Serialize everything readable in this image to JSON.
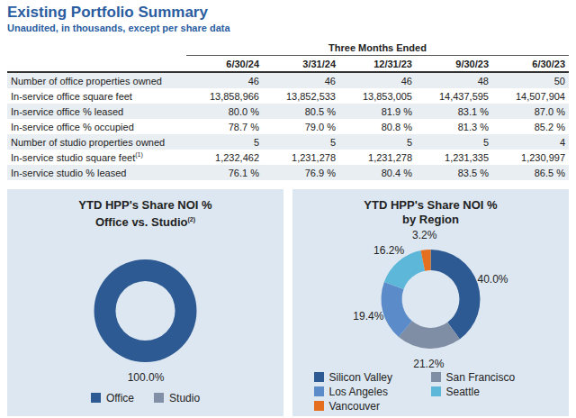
{
  "header": {
    "title": "Existing Portfolio Summary",
    "subtitle": "Unaudited, in thousands, except per share data"
  },
  "table": {
    "group_header": "Three Months Ended",
    "columns": [
      "6/30/24",
      "3/31/24",
      "12/31/23",
      "9/30/23",
      "6/30/23"
    ],
    "rows": [
      {
        "label": "Number of office properties owned",
        "values": [
          "46",
          "46",
          "46",
          "48",
          "50"
        ]
      },
      {
        "label": "In-service office square feet",
        "values": [
          "13,858,966",
          "13,852,533",
          "13,853,005",
          "14,437,595",
          "14,507,904"
        ]
      },
      {
        "label": "In-service office % leased",
        "values": [
          "80.0 %",
          "80.5 %",
          "81.9 %",
          "83.1 %",
          "87.0 %"
        ]
      },
      {
        "label": "In-service office % occupied",
        "values": [
          "78.7 %",
          "79.0 %",
          "80.8 %",
          "81.3 %",
          "85.2 %"
        ]
      },
      {
        "label": "Number of studio properties owned",
        "values": [
          "5",
          "5",
          "5",
          "5",
          "4"
        ]
      },
      {
        "label": "In-service studio square feet",
        "footnote": "(1)",
        "values": [
          "1,232,462",
          "1,231,278",
          "1,231,278",
          "1,231,335",
          "1,230,997"
        ]
      },
      {
        "label": "In-service studio % leased",
        "values": [
          "76.1 %",
          "76.9 %",
          "80.4 %",
          "83.5 %",
          "86.5 %"
        ]
      }
    ]
  },
  "chart_data": [
    {
      "type": "donut",
      "title": "YTD HPP's Share NOI %",
      "subtitle": "Office vs. Studio",
      "title_footnote": "(2)",
      "categories": [
        "Office",
        "Studio"
      ],
      "values": [
        100,
        0
      ],
      "value_labels": [
        "100.0%",
        null
      ],
      "colors": [
        "#2d5a92",
        "#8190a6"
      ],
      "data_labels": true,
      "legend": "bottom"
    },
    {
      "type": "donut",
      "title": "YTD HPP's Share NOI %",
      "subtitle": "by Region",
      "categories": [
        "Silicon Valley",
        "San Francisco",
        "Los Angeles",
        "Seattle",
        "Vancouver"
      ],
      "values": [
        40.0,
        21.2,
        19.4,
        16.2,
        3.2
      ],
      "value_labels": [
        "40.0%",
        "21.2%",
        "19.4%",
        "16.2%",
        "3.2%"
      ],
      "colors": [
        "#2d5a92",
        "#7f8ea5",
        "#5b8bc9",
        "#5cb7d9",
        "#e4701f"
      ],
      "data_labels": true,
      "legend": "bottom"
    }
  ]
}
